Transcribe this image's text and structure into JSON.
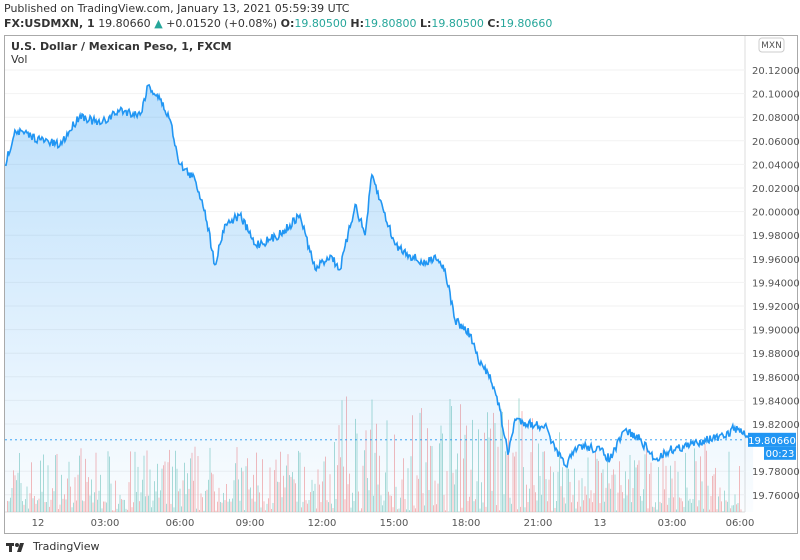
{
  "header": {
    "published": "Published on TradingView.com, January 13, 2021 05:59:39 UTC",
    "symbol": "FX:USDMXN, 1",
    "last": "19.80660",
    "change": "+0.01520 (+0.08%)",
    "o_label": "O:",
    "o": "19.80500",
    "h_label": "H:",
    "h": "19.80800",
    "l_label": "L:",
    "l": "19.80500",
    "c_label": "C:",
    "c": "19.80660",
    "up_arrow": "▲"
  },
  "legend": {
    "title": "U.S. Dollar / Mexican Peso, 1, FXCM",
    "vol": "Vol"
  },
  "footer": {
    "brand": "TradingView"
  },
  "colors": {
    "line": "#2196f3",
    "up": "#26a69a",
    "down": "#ef5350",
    "label_bg": "#2196f3"
  },
  "chart_data": {
    "type": "area",
    "ylim": [
      19.745,
      20.15
    ],
    "y_ticks": [
      "20.12000",
      "20.10000",
      "20.08000",
      "20.06000",
      "20.04000",
      "20.02000",
      "20.00000",
      "19.98000",
      "19.96000",
      "19.94000",
      "19.92000",
      "19.90000",
      "19.88000",
      "19.86000",
      "19.84000",
      "19.82000",
      "19.78000",
      "19.76000"
    ],
    "x_ticks": [
      "12",
      "03:00",
      "06:00",
      "09:00",
      "12:00",
      "15:00",
      "18:00",
      "21:00",
      "13",
      "03:00",
      "06:00"
    ],
    "currency_badge": "MXN",
    "last_price_label": "19.80660",
    "countdown_label": "00:23",
    "series": [
      {
        "points": [
          [
            "2021-01-11T22:37",
            20.0395
          ],
          [
            "2021-01-11T23:02",
            20.069
          ],
          [
            "2021-01-12T00:05",
            20.061
          ],
          [
            "2021-01-12T00:55",
            20.056
          ],
          [
            "2021-01-12T01:46",
            20.082
          ],
          [
            "2021-01-12T02:36",
            20.074
          ],
          [
            "2021-01-12T03:26",
            20.086
          ],
          [
            "2021-01-12T04:17",
            20.082
          ],
          [
            "2021-01-12T04:37",
            20.107
          ],
          [
            "2021-01-12T05:07",
            20.095
          ],
          [
            "2021-01-12T05:32",
            20.078
          ],
          [
            "2021-01-12T05:57",
            20.04
          ],
          [
            "2021-01-12T06:35",
            20.027
          ],
          [
            "2021-01-12T07:00",
            20.001
          ],
          [
            "2021-01-12T07:25",
            19.955
          ],
          [
            "2021-01-12T07:50",
            19.989
          ],
          [
            "2021-01-12T08:28",
            19.997
          ],
          [
            "2021-01-12T09:06",
            19.972
          ],
          [
            "2021-01-12T09:44",
            19.976
          ],
          [
            "2021-01-12T10:21",
            19.984
          ],
          [
            "2021-01-12T10:59",
            19.997
          ],
          [
            "2021-01-12T11:37",
            19.951
          ],
          [
            "2021-01-12T12:15",
            19.963
          ],
          [
            "2021-01-12T12:40",
            19.951
          ],
          [
            "2021-01-12T13:18",
            20.006
          ],
          [
            "2021-01-12T13:43",
            19.98
          ],
          [
            "2021-01-12T14:00",
            20.031
          ],
          [
            "2021-01-12T14:20",
            20.01
          ],
          [
            "2021-01-12T14:58",
            19.972
          ],
          [
            "2021-01-12T15:36",
            19.963
          ],
          [
            "2021-01-12T16:14",
            19.955
          ],
          [
            "2021-01-12T16:39",
            19.963
          ],
          [
            "2021-01-12T17:04",
            19.951
          ],
          [
            "2021-01-12T17:29",
            19.908
          ],
          [
            "2021-01-12T18:07",
            19.896
          ],
          [
            "2021-01-12T18:32",
            19.87
          ],
          [
            "2021-01-12T18:57",
            19.862
          ],
          [
            "2021-01-12T19:22",
            19.832
          ],
          [
            "2021-01-12T19:42",
            19.794
          ],
          [
            "2021-01-12T20:00",
            19.824
          ],
          [
            "2021-01-12T20:50",
            19.819
          ],
          [
            "2021-01-12T21:15",
            19.819
          ],
          [
            "2021-01-12T21:41",
            19.798
          ],
          [
            "2021-01-12T22:06",
            19.785
          ],
          [
            "2021-01-12T22:44",
            19.802
          ],
          [
            "2021-01-12T23:34",
            19.798
          ],
          [
            "2021-01-12T23:59",
            19.79
          ],
          [
            "2021-01-13T00:37",
            19.815
          ],
          [
            "2021-01-13T01:14",
            19.807
          ],
          [
            "2021-01-13T01:52",
            19.79
          ],
          [
            "2021-01-13T02:30",
            19.798
          ],
          [
            "2021-01-13T03:20",
            19.802
          ],
          [
            "2021-01-13T03:58",
            19.807
          ],
          [
            "2021-01-13T04:48",
            19.809
          ],
          [
            "2021-01-13T05:13",
            19.817
          ],
          [
            "2021-01-13T05:59",
            19.8066
          ]
        ]
      }
    ]
  }
}
